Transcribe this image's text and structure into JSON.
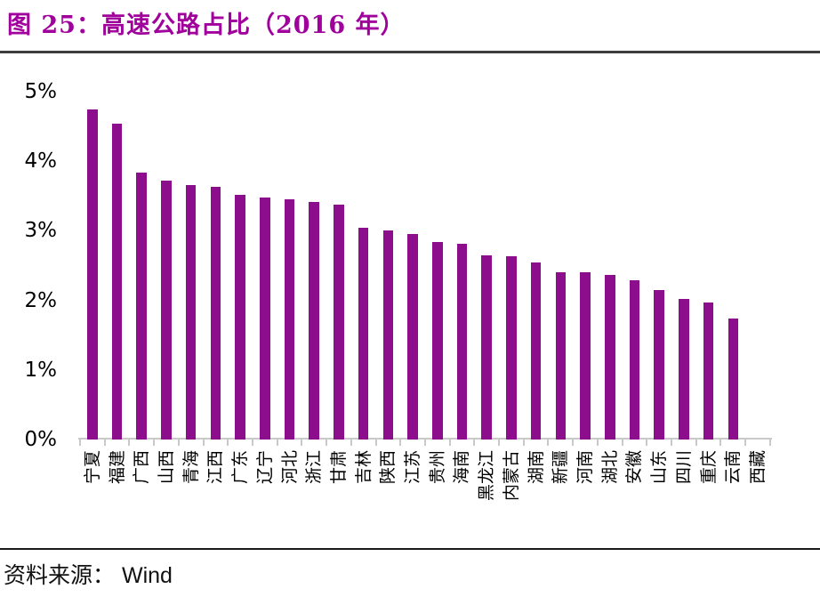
{
  "title": {
    "text": "图 25：高速公路占比（2016 年）",
    "color": "#A0009B"
  },
  "footer": {
    "source_label": "资料来源：",
    "source_value": "Wind"
  },
  "chart_data": {
    "type": "bar",
    "title": "图 25：高速公路占比（2016 年）",
    "categories": [
      "宁夏",
      "福建",
      "广西",
      "山西",
      "青海",
      "江西",
      "广东",
      "辽宁",
      "河北",
      "浙江",
      "甘肃",
      "吉林",
      "陕西",
      "江苏",
      "贵州",
      "海南",
      "黑龙江",
      "内蒙古",
      "湖南",
      "新疆",
      "河南",
      "湖北",
      "安徽",
      "山东",
      "四川",
      "重庆",
      "云南",
      "西藏"
    ],
    "values": [
      4.75,
      4.54,
      3.84,
      3.72,
      3.66,
      3.63,
      3.52,
      3.48,
      3.45,
      3.42,
      3.38,
      3.04,
      3.0,
      2.96,
      2.84,
      2.81,
      2.65,
      2.63,
      2.54,
      2.41,
      2.4,
      2.37,
      2.29,
      2.15,
      2.02,
      1.97,
      1.74,
      0
    ],
    "unit": "percent",
    "xlabel": "",
    "ylabel": "",
    "ylim": [
      0,
      5
    ],
    "yticks": [
      "0%",
      "1%",
      "2%",
      "3%",
      "4%",
      "5%"
    ],
    "grid": false,
    "legend": false,
    "x_label_rotation_deg": -90,
    "bar_color": "#8C0E8C",
    "axis_color": "#C9C9C9"
  }
}
